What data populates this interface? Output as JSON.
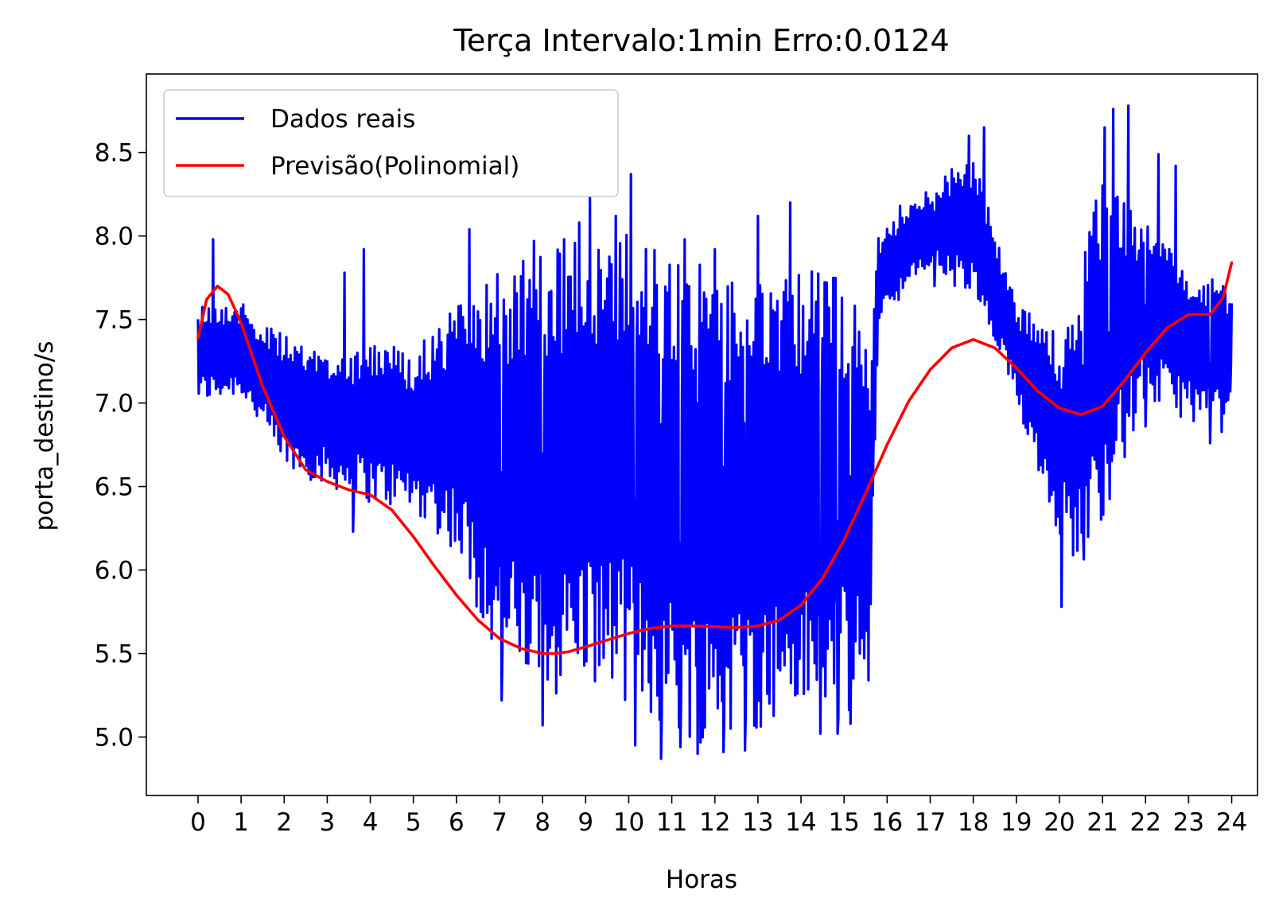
{
  "chart_data": {
    "type": "line",
    "title": "Terça Intervalo:1min Erro:0.0124",
    "xlabel": "Horas",
    "ylabel": "porta_destino/s",
    "xlim": [
      -1.2,
      24.6
    ],
    "ylim": [
      4.65,
      8.97
    ],
    "xticks": [
      "0",
      "1",
      "2",
      "3",
      "4",
      "5",
      "6",
      "7",
      "8",
      "9",
      "10",
      "11",
      "12",
      "13",
      "14",
      "15",
      "16",
      "17",
      "18",
      "19",
      "20",
      "21",
      "22",
      "23",
      "24"
    ],
    "yticks": [
      "5.0",
      "5.5",
      "6.0",
      "6.5",
      "7.0",
      "7.5",
      "8.0",
      "8.5"
    ],
    "grid": false,
    "legend_position": "upper left",
    "series": [
      {
        "name": "Dados reais",
        "color": "#0000ff",
        "band": {
          "x": [
            0,
            1,
            2,
            3,
            4,
            5,
            6,
            7,
            8,
            9,
            10,
            11,
            12,
            13,
            14,
            15,
            15.6,
            15.8,
            17,
            18,
            19,
            20,
            20.5,
            21,
            22,
            23,
            24
          ],
          "low": [
            7.0,
            7.05,
            6.6,
            6.5,
            6.4,
            6.35,
            6.1,
            5.4,
            5.2,
            5.35,
            5.2,
            5.0,
            4.95,
            5.05,
            5.1,
            5.1,
            5.2,
            7.5,
            7.8,
            7.6,
            7.0,
            6.2,
            6.0,
            6.3,
            7.0,
            6.9,
            6.8
          ],
          "high": [
            7.6,
            7.6,
            7.4,
            7.3,
            7.4,
            7.3,
            7.6,
            7.8,
            7.9,
            8.0,
            8.1,
            7.9,
            7.8,
            7.7,
            7.8,
            7.8,
            7.5,
            8.0,
            8.3,
            8.5,
            7.6,
            7.4,
            7.8,
            8.4,
            8.1,
            7.8,
            7.7
          ]
        },
        "peaks": [
          {
            "x": 0.35,
            "y": 7.98
          },
          {
            "x": 3.4,
            "y": 7.78
          },
          {
            "x": 3.85,
            "y": 7.92
          },
          {
            "x": 6.3,
            "y": 8.04
          },
          {
            "x": 7.8,
            "y": 7.97
          },
          {
            "x": 8.5,
            "y": 7.98
          },
          {
            "x": 8.85,
            "y": 8.08
          },
          {
            "x": 9.1,
            "y": 8.23
          },
          {
            "x": 9.7,
            "y": 8.12
          },
          {
            "x": 10.05,
            "y": 8.37
          },
          {
            "x": 11.3,
            "y": 7.98
          },
          {
            "x": 12.0,
            "y": 7.92
          },
          {
            "x": 13.0,
            "y": 8.12
          },
          {
            "x": 13.75,
            "y": 8.2
          },
          {
            "x": 16.3,
            "y": 8.18
          },
          {
            "x": 17.1,
            "y": 8.38
          },
          {
            "x": 17.9,
            "y": 8.6
          },
          {
            "x": 18.25,
            "y": 8.65
          },
          {
            "x": 21.05,
            "y": 8.65
          },
          {
            "x": 21.25,
            "y": 8.76
          },
          {
            "x": 21.6,
            "y": 8.78
          },
          {
            "x": 22.3,
            "y": 8.49
          },
          {
            "x": 22.7,
            "y": 8.42
          }
        ],
        "troughs": [
          {
            "x": 3.6,
            "y": 6.23
          },
          {
            "x": 7.05,
            "y": 5.22
          },
          {
            "x": 8.0,
            "y": 5.07
          },
          {
            "x": 10.15,
            "y": 4.95
          },
          {
            "x": 10.75,
            "y": 4.87
          },
          {
            "x": 11.2,
            "y": 4.94
          },
          {
            "x": 11.6,
            "y": 4.9
          },
          {
            "x": 12.2,
            "y": 4.91
          },
          {
            "x": 12.7,
            "y": 4.92
          },
          {
            "x": 14.45,
            "y": 5.02
          },
          {
            "x": 14.85,
            "y": 5.02
          },
          {
            "x": 15.15,
            "y": 5.08
          },
          {
            "x": 17.1,
            "y": 7.7
          },
          {
            "x": 20.05,
            "y": 5.78
          },
          {
            "x": 20.55,
            "y": 6.25
          },
          {
            "x": 21.15,
            "y": 7.15
          },
          {
            "x": 22.0,
            "y": 6.86
          },
          {
            "x": 23.5,
            "y": 6.76
          }
        ]
      },
      {
        "name": "Previsão(Polinomial)",
        "color": "#ff0000",
        "x": [
          0,
          0.2,
          0.45,
          0.7,
          1.0,
          1.5,
          2.0,
          2.5,
          3.0,
          3.5,
          4.0,
          4.5,
          5.0,
          5.5,
          6.0,
          6.5,
          7.0,
          7.5,
          8.0,
          8.3,
          8.6,
          9.0,
          9.5,
          10.0,
          10.5,
          11.0,
          11.5,
          12.0,
          12.5,
          13.0,
          13.5,
          14.0,
          14.5,
          15.0,
          15.5,
          16.0,
          16.5,
          17.0,
          17.5,
          18.0,
          18.5,
          19.0,
          19.5,
          20.0,
          20.5,
          21.0,
          21.5,
          22.0,
          22.5,
          23.0,
          23.5,
          23.8,
          24.0
        ],
        "values": [
          7.39,
          7.62,
          7.7,
          7.65,
          7.48,
          7.1,
          6.8,
          6.6,
          6.53,
          6.48,
          6.45,
          6.36,
          6.2,
          6.02,
          5.85,
          5.7,
          5.59,
          5.53,
          5.5,
          5.5,
          5.51,
          5.54,
          5.58,
          5.62,
          5.65,
          5.665,
          5.665,
          5.66,
          5.655,
          5.665,
          5.7,
          5.79,
          5.95,
          6.18,
          6.46,
          6.75,
          7.01,
          7.2,
          7.33,
          7.38,
          7.33,
          7.21,
          7.07,
          6.97,
          6.93,
          6.98,
          7.13,
          7.3,
          7.45,
          7.53,
          7.53,
          7.63,
          7.84
        ]
      }
    ]
  }
}
